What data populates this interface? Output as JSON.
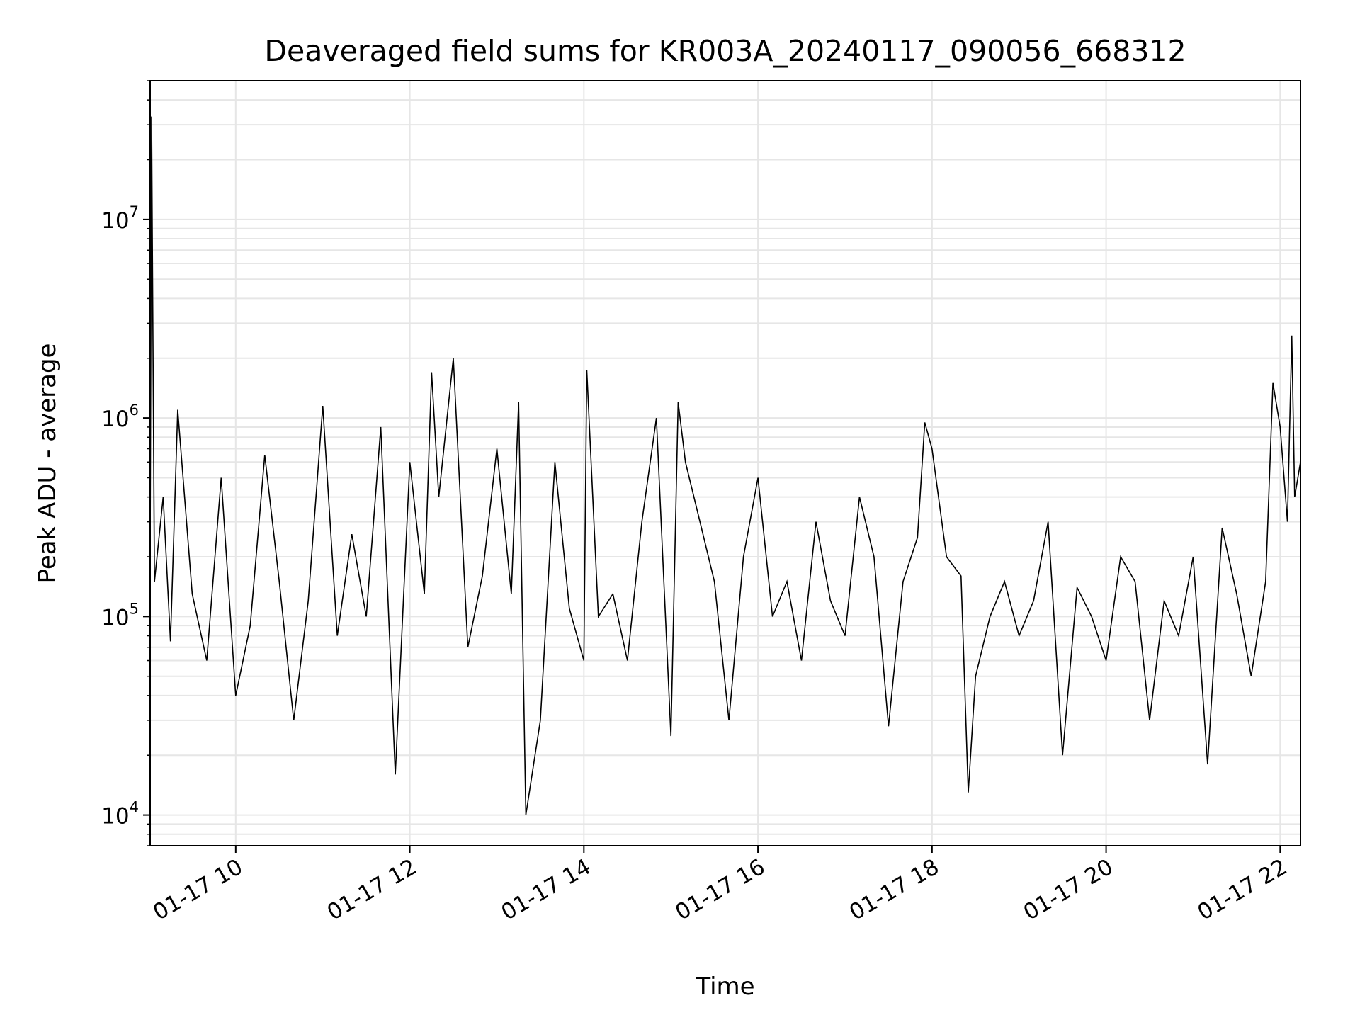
{
  "chart_data": {
    "type": "line",
    "title": "Deaveraged field sums for KR003A_20240117_090056_668312",
    "xlabel": "Time",
    "ylabel": "Peak ADU - average",
    "x_type": "datetime",
    "xlim": [
      "2024-01-17T09:01",
      "2024-01-17T22:14"
    ],
    "ylim": [
      7000,
      50000000
    ],
    "y_scale": "log",
    "grid": {
      "major": true,
      "minor": true
    },
    "legend": "none",
    "line_color": "#000000",
    "x_ticks": [
      {
        "value": "2024-01-17T10:00",
        "label": "01-17 10"
      },
      {
        "value": "2024-01-17T12:00",
        "label": "01-17 12"
      },
      {
        "value": "2024-01-17T14:00",
        "label": "01-17 14"
      },
      {
        "value": "2024-01-17T16:00",
        "label": "01-17 16"
      },
      {
        "value": "2024-01-17T18:00",
        "label": "01-17 18"
      },
      {
        "value": "2024-01-17T20:00",
        "label": "01-17 20"
      },
      {
        "value": "2024-01-17T22:00",
        "label": "01-17 22"
      }
    ],
    "y_ticks": [
      {
        "value": 10000,
        "base": "10",
        "exp": "4"
      },
      {
        "value": 100000,
        "base": "10",
        "exp": "5"
      },
      {
        "value": 1000000,
        "base": "10",
        "exp": "6"
      },
      {
        "value": 10000000,
        "base": "10",
        "exp": "7"
      }
    ],
    "series": [
      {
        "x": [
          "2024-01-17T09:01",
          "2024-01-17T09:02",
          "2024-01-17T09:04",
          "2024-01-17T09:10",
          "2024-01-17T09:15",
          "2024-01-17T09:20",
          "2024-01-17T09:30",
          "2024-01-17T09:40",
          "2024-01-17T09:50",
          "2024-01-17T10:00",
          "2024-01-17T10:10",
          "2024-01-17T10:20",
          "2024-01-17T10:30",
          "2024-01-17T10:40",
          "2024-01-17T10:50",
          "2024-01-17T11:00",
          "2024-01-17T11:10",
          "2024-01-17T11:20",
          "2024-01-17T11:30",
          "2024-01-17T11:40",
          "2024-01-17T11:50",
          "2024-01-17T12:00",
          "2024-01-17T12:10",
          "2024-01-17T12:15",
          "2024-01-17T12:20",
          "2024-01-17T12:30",
          "2024-01-17T12:40",
          "2024-01-17T12:50",
          "2024-01-17T13:00",
          "2024-01-17T13:10",
          "2024-01-17T13:15",
          "2024-01-17T13:20",
          "2024-01-17T13:30",
          "2024-01-17T13:40",
          "2024-01-17T13:50",
          "2024-01-17T14:00",
          "2024-01-17T14:02",
          "2024-01-17T14:10",
          "2024-01-17T14:20",
          "2024-01-17T14:30",
          "2024-01-17T14:40",
          "2024-01-17T14:50",
          "2024-01-17T15:00",
          "2024-01-17T15:05",
          "2024-01-17T15:10",
          "2024-01-17T15:20",
          "2024-01-17T15:30",
          "2024-01-17T15:40",
          "2024-01-17T15:50",
          "2024-01-17T16:00",
          "2024-01-17T16:10",
          "2024-01-17T16:20",
          "2024-01-17T16:30",
          "2024-01-17T16:40",
          "2024-01-17T16:50",
          "2024-01-17T17:00",
          "2024-01-17T17:10",
          "2024-01-17T17:20",
          "2024-01-17T17:30",
          "2024-01-17T17:40",
          "2024-01-17T17:50",
          "2024-01-17T17:55",
          "2024-01-17T18:00",
          "2024-01-17T18:10",
          "2024-01-17T18:20",
          "2024-01-17T18:25",
          "2024-01-17T18:30",
          "2024-01-17T18:40",
          "2024-01-17T18:50",
          "2024-01-17T19:00",
          "2024-01-17T19:10",
          "2024-01-17T19:20",
          "2024-01-17T19:30",
          "2024-01-17T19:40",
          "2024-01-17T19:50",
          "2024-01-17T20:00",
          "2024-01-17T20:10",
          "2024-01-17T20:20",
          "2024-01-17T20:30",
          "2024-01-17T20:40",
          "2024-01-17T20:50",
          "2024-01-17T21:00",
          "2024-01-17T21:10",
          "2024-01-17T21:20",
          "2024-01-17T21:30",
          "2024-01-17T21:40",
          "2024-01-17T21:50",
          "2024-01-17T21:55",
          "2024-01-17T22:00",
          "2024-01-17T22:05",
          "2024-01-17T22:08",
          "2024-01-17T22:10",
          "2024-01-17T22:14"
        ],
        "y": [
          200000,
          33000000,
          150000,
          400000,
          75000,
          1100000,
          130000,
          60000,
          500000,
          40000,
          90000,
          650000,
          150000,
          30000,
          120000,
          1150000,
          80000,
          260000,
          100000,
          900000,
          16000,
          600000,
          130000,
          1700000,
          400000,
          2000000,
          70000,
          160000,
          700000,
          130000,
          1200000,
          10000,
          30000,
          600000,
          110000,
          60000,
          1750000,
          100000,
          130000,
          60000,
          300000,
          1000000,
          25000,
          1200000,
          600000,
          300000,
          150000,
          30000,
          200000,
          500000,
          100000,
          150000,
          60000,
          300000,
          120000,
          80000,
          400000,
          200000,
          28000,
          150000,
          250000,
          950000,
          700000,
          200000,
          160000,
          13000,
          50000,
          100000,
          150000,
          80000,
          120000,
          300000,
          20000,
          140000,
          100000,
          60000,
          200000,
          150000,
          30000,
          120000,
          80000,
          200000,
          18000,
          280000,
          130000,
          50000,
          150000,
          1500000,
          900000,
          300000,
          2600000,
          400000,
          600000
        ]
      }
    ]
  }
}
